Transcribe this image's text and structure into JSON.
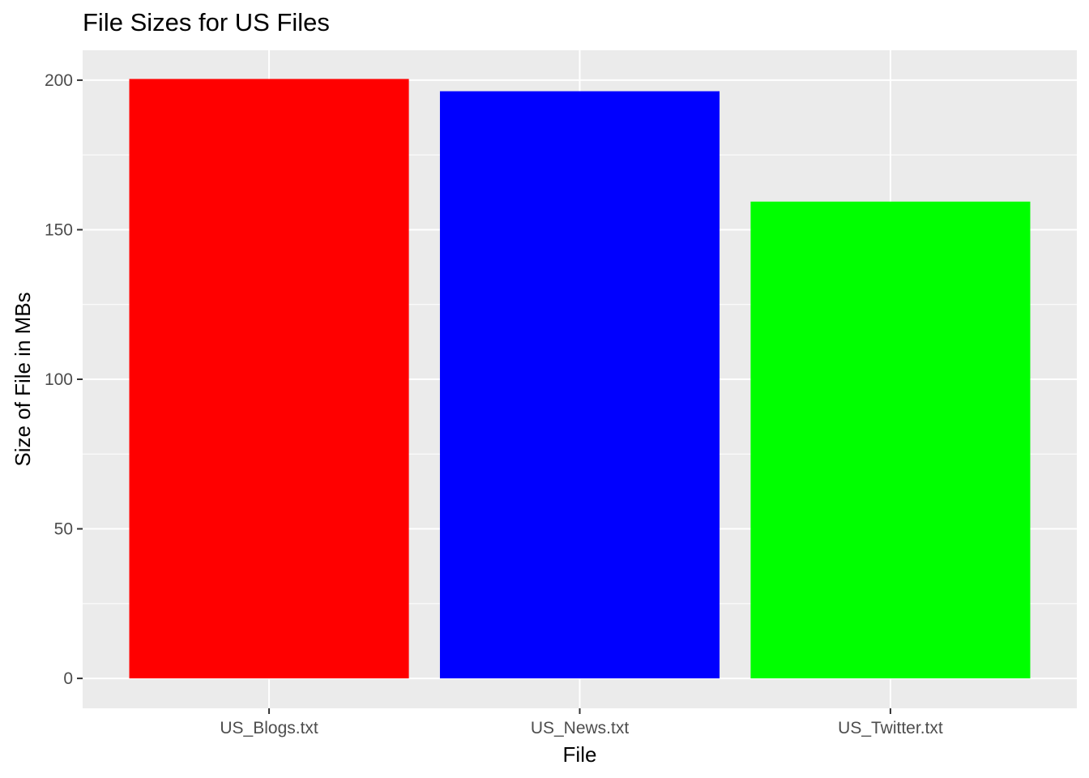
{
  "chart_data": {
    "type": "bar",
    "title": "File Sizes for US Files",
    "xlabel": "File",
    "ylabel": "Size of File in MBs",
    "categories": [
      "US_Blogs.txt",
      "US_News.txt",
      "US_Twitter.txt"
    ],
    "values": [
      200.4,
      196.3,
      159.4
    ],
    "colors": [
      "#ff0000",
      "#0000ff",
      "#00ff00"
    ],
    "ylim": [
      -10,
      210
    ],
    "yticks": [
      0,
      50,
      100,
      150,
      200
    ],
    "ytick_labels": [
      "0",
      "50",
      "100",
      "150",
      "200"
    ],
    "grid": true,
    "panel_background": "#ebebeb",
    "grid_color": "#ffffff",
    "legend": "none"
  }
}
